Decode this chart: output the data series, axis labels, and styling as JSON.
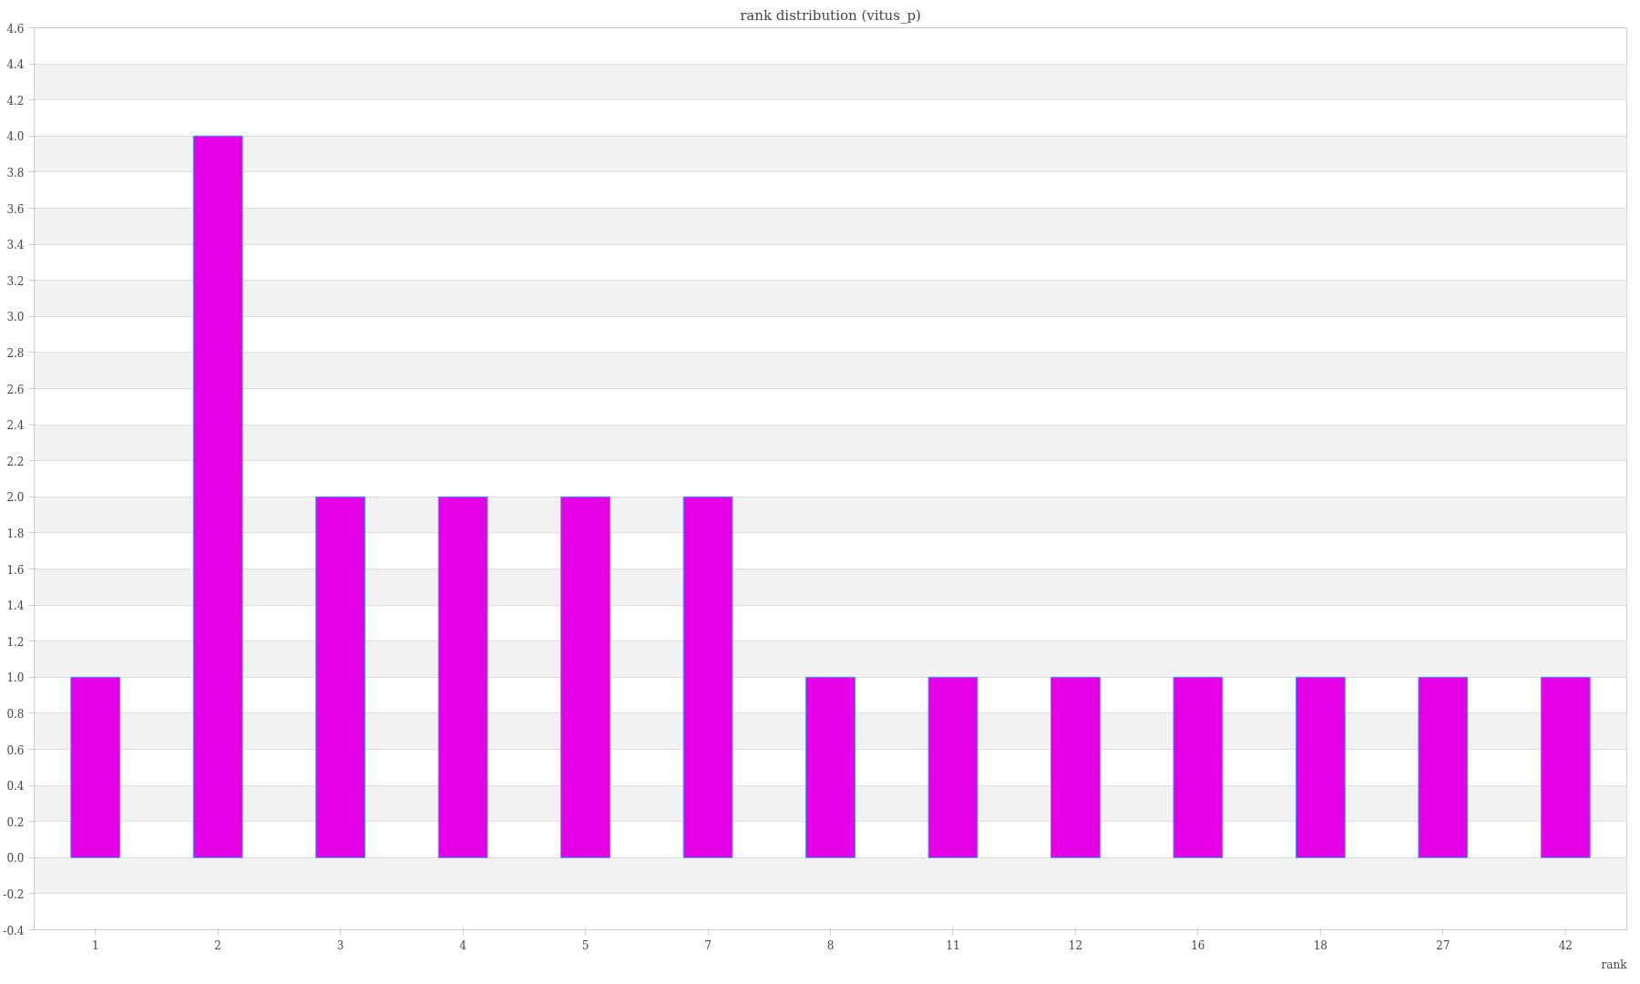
{
  "chart_data": {
    "type": "bar",
    "title": "rank distribution (vitus_p)",
    "xlabel": "rank",
    "categories": [
      "1",
      "2",
      "3",
      "4",
      "5",
      "7",
      "8",
      "11",
      "12",
      "16",
      "18",
      "27",
      "42"
    ],
    "values": [
      1,
      4,
      2,
      2,
      2,
      2,
      1,
      1,
      1,
      1,
      1,
      1,
      1
    ],
    "color": "#e600e6",
    "ylim": [
      -0.4,
      4.6
    ],
    "yticks": [
      -0.4,
      -0.2,
      {
        "value": 0,
        "label": "0.0"
      },
      0.2,
      0.4,
      0.6,
      0.8,
      {
        "value": 1,
        "label": "1.0"
      },
      1.2,
      1.4,
      1.6,
      1.8,
      {
        "value": 2,
        "label": "2.0"
      },
      2.2,
      2.4,
      2.6,
      2.8,
      {
        "value": 3,
        "label": "3.0"
      },
      3.2,
      3.4,
      3.6,
      3.8,
      {
        "value": 4,
        "label": "4.0"
      },
      4.2,
      4.4,
      4.6
    ],
    "grid": "y"
  }
}
